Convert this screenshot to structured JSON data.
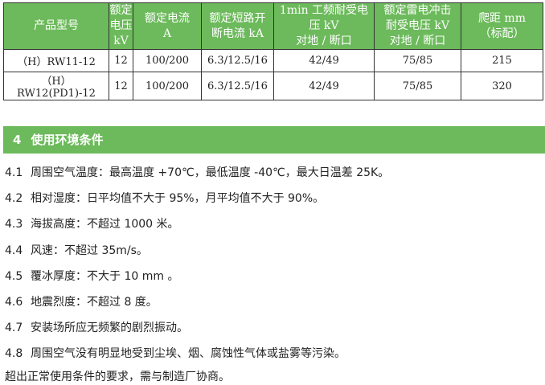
{
  "table": {
    "headers": [
      "产品型号",
      "额定\n电压\nkV",
      "额定电流\nA",
      "额定短路开\n断电流 kA",
      "1min 工频耐受电\n压 kV\n对地 / 断口",
      "额定雷电冲击\n耐受电压 kV\n对地 / 断口",
      "爬距 mm\n（标配）"
    ],
    "rows": [
      [
        "（H）RW11-12",
        "12",
        "100/200",
        "6.3/12.5/16",
        "42/49",
        "75/85",
        "215"
      ],
      [
        "（H）RW12(PD1)-12",
        "12",
        "100/200",
        "6.3/12.5/16",
        "42/49",
        "75/85",
        "320"
      ]
    ]
  },
  "section": {
    "num": "4",
    "title": "使用环境条件"
  },
  "items": [
    {
      "n": "4.1",
      "t": "周围空气温度：最高温度 +70℃，最低温度 -40℃，最大日温差 25K。"
    },
    {
      "n": "4.2",
      "t": "相对湿度：日平均值不大于 95%，月平均值不大于 90%。"
    },
    {
      "n": "4.3",
      "t": "海拔高度：不超过 1000 米。"
    },
    {
      "n": "4.4",
      "t": "风速：不超过 35m/s。"
    },
    {
      "n": "4.5",
      "t": "覆冰厚度：不大于 10 mm 。"
    },
    {
      "n": "4.6",
      "t": "地震烈度：不超过 8 度。"
    },
    {
      "n": "4.7",
      "t": "安装场所应无频繁的剧烈振动。"
    },
    {
      "n": "4.8",
      "t": "周围空气没有明显地受到尘埃、烟、腐蚀性气体或盐雾等污染。"
    }
  ],
  "note": "超出正常使用条件的要求，需与制造厂协商。"
}
